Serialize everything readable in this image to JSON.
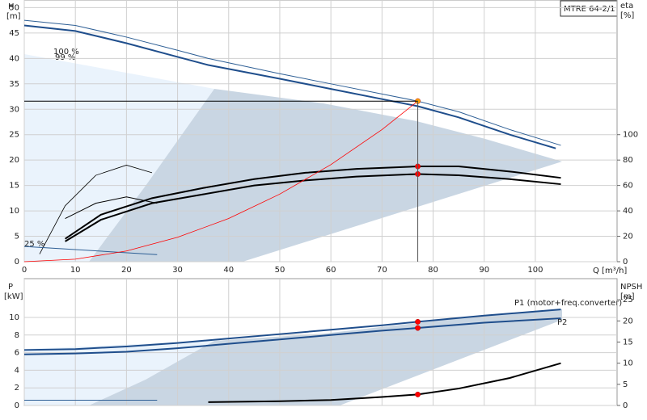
{
  "chart_data": [
    {
      "type": "line",
      "box_label": "MTRE 64-2/1",
      "ylabel": "H",
      "yunit": "[m]",
      "y2label": "eta",
      "y2unit": "[%]",
      "xlabel": "Q [m³/h]",
      "annotations": [
        "100 %",
        "99 %",
        "25 %"
      ],
      "xlim": [
        0,
        116
      ],
      "xticks": [
        0,
        10,
        20,
        30,
        40,
        50,
        60,
        70,
        80,
        90,
        100
      ],
      "ylim": [
        0,
        51.5
      ],
      "yticks": [
        0,
        5,
        10,
        15,
        20,
        25,
        30,
        35,
        40,
        45,
        50
      ],
      "y2lim": [
        0,
        206
      ],
      "y2ticks": [
        0,
        20,
        40,
        60,
        80,
        100
      ],
      "grid": true,
      "series": [
        {
          "x": [
            0,
            10,
            20,
            30,
            36,
            50,
            60,
            70,
            77,
            85,
            95,
            105
          ],
          "values": [
            47.5,
            46.5,
            44.2,
            41.6,
            40,
            37,
            35,
            33,
            31.6,
            29.5,
            26,
            22.9
          ],
          "color": "#2e5f95",
          "width": 1
        },
        {
          "x": [
            0,
            10,
            20,
            30,
            36,
            50,
            60,
            70,
            77,
            85,
            95,
            104
          ],
          "values": [
            46.5,
            45.4,
            43,
            40.3,
            38.7,
            36,
            34,
            32,
            30.6,
            28.4,
            25,
            22.3
          ],
          "color": "#1f4e8c",
          "width": 2
        },
        {
          "x": [
            8,
            15,
            25,
            35,
            45,
            55,
            65,
            77,
            85,
            95,
            105
          ],
          "values": [
            18,
            37,
            50,
            58,
            65,
            70,
            73,
            75,
            75,
            71,
            66
          ],
          "color": "#000",
          "width": 2,
          "axis": "y2"
        },
        {
          "x": [
            8,
            15,
            25,
            35,
            45,
            55,
            65,
            77,
            85,
            95,
            105
          ],
          "values": [
            16,
            33,
            46,
            53,
            60,
            64,
            67,
            69,
            68,
            65,
            61
          ],
          "color": "#000",
          "width": 2,
          "axis": "y2"
        },
        {
          "x": [
            3,
            8,
            14,
            20,
            25
          ],
          "values": [
            6,
            44,
            68,
            76,
            70
          ],
          "color": "#000",
          "width": 0.8,
          "axis": "y2"
        },
        {
          "x": [
            8,
            14,
            20,
            26
          ],
          "values": [
            34,
            46,
            51,
            46
          ],
          "color": "#000",
          "width": 1,
          "axis": "y2"
        },
        {
          "x": [
            0,
            26
          ],
          "values": [
            3,
            1.4
          ],
          "color": "#2e5f95",
          "width": 1
        },
        {
          "x": [
            0,
            10,
            20,
            30,
            40,
            50,
            60,
            70,
            77
          ],
          "values": [
            0,
            0.5,
            2.1,
            4.8,
            8.5,
            13.3,
            19.1,
            26,
            31.6
          ],
          "color": "#ff0000",
          "width": 0.8
        },
        {
          "x": [
            77
          ],
          "values": [
            31.6
          ],
          "color": "#ffa500",
          "markers": true
        },
        {
          "x": [
            77,
            77
          ],
          "values": [
            75,
            69
          ],
          "color": "#ff0000",
          "markers": true,
          "axis": "y2"
        }
      ]
    },
    {
      "type": "line",
      "ylabel": "P",
      "yunit": "[kW]",
      "y2label": "NPSH",
      "y2unit": "[m]",
      "xlim": [
        0,
        116
      ],
      "ylim": [
        0,
        14.4
      ],
      "yticks": [
        0,
        2,
        4,
        6,
        8,
        10
      ],
      "y2lim": [
        0,
        30
      ],
      "y2ticks": [
        0,
        5,
        10,
        15,
        20,
        25
      ],
      "grid": true,
      "series": [
        {
          "name": "P1 (motor+freq.converter)",
          "x": [
            0,
            10,
            20,
            30,
            40,
            50,
            60,
            70,
            77,
            90,
            105
          ],
          "values": [
            6.3,
            6.4,
            6.7,
            7.1,
            7.6,
            8.1,
            8.6,
            9.1,
            9.5,
            10.2,
            10.9
          ],
          "color": "#1f4e8c",
          "width": 2
        },
        {
          "name": "P2",
          "x": [
            0,
            10,
            20,
            30,
            40,
            50,
            60,
            70,
            77,
            90,
            105
          ],
          "values": [
            5.8,
            5.9,
            6.1,
            6.5,
            7,
            7.5,
            8,
            8.5,
            8.8,
            9.4,
            9.9
          ],
          "color": "#1f4e8c",
          "width": 2
        },
        {
          "x": [
            0,
            26
          ],
          "values": [
            0.6,
            0.6
          ],
          "color": "#2e5f95",
          "width": 1
        },
        {
          "x": [
            36,
            50,
            60,
            70,
            77,
            85,
            95,
            105
          ],
          "values": [
            0.8,
            1.0,
            1.3,
            2.0,
            2.6,
            4,
            6.5,
            10
          ],
          "color": "#000",
          "width": 2,
          "axis": "y2"
        },
        {
          "x": [
            77,
            77
          ],
          "values": [
            9.5,
            8.8
          ],
          "color": "#ff0000",
          "markers": true
        },
        {
          "x": [
            77
          ],
          "values": [
            2.6
          ],
          "color": "#ff0000",
          "markers": true,
          "axis": "y2"
        }
      ]
    }
  ]
}
